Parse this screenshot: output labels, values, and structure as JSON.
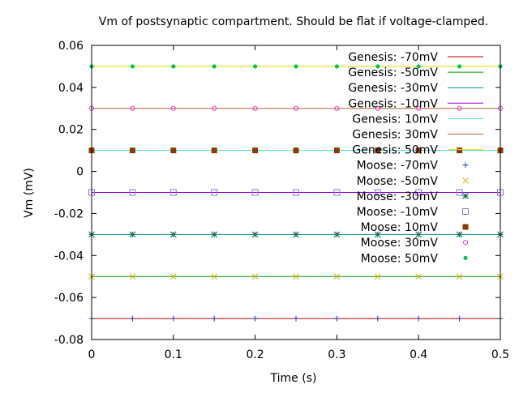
{
  "chart_data": {
    "type": "line",
    "title": "Vm of postsynaptic compartment. Should be flat if voltage-clamped.",
    "xlabel": "Time (s)",
    "ylabel": "Vm (mV)",
    "xlim": [
      0,
      0.5
    ],
    "ylim": [
      -0.08,
      0.06
    ],
    "xticks": [
      0,
      0.1,
      0.2,
      0.3,
      0.4,
      0.5
    ],
    "xtick_labels": [
      "0",
      "0.1",
      "0.2",
      "0.3",
      "0.4",
      "0.5"
    ],
    "yticks": [
      -0.08,
      -0.06,
      -0.04,
      -0.02,
      0,
      0.02,
      0.04,
      0.06
    ],
    "ytick_labels": [
      "-0.08",
      "-0.06",
      "-0.04",
      "-0.02",
      "0",
      "0.02",
      "0.04",
      "0.06"
    ],
    "grid": false,
    "legend_position": "top-right",
    "marker_x": [
      0,
      0.05,
      0.1,
      0.15,
      0.2,
      0.25,
      0.3,
      0.35,
      0.4,
      0.45,
      0.5
    ],
    "line_series": [
      {
        "name": "Genesis: -70mV",
        "x": [
          0,
          0.5
        ],
        "y": [
          -0.07,
          -0.07
        ],
        "color": "#c00000"
      },
      {
        "name": "Genesis: -50mV",
        "x": [
          0,
          0.5
        ],
        "y": [
          -0.05,
          -0.05
        ],
        "color": "#009e00"
      },
      {
        "name": "Genesis: -30mV",
        "x": [
          0,
          0.5
        ],
        "y": [
          -0.03,
          -0.03
        ],
        "color": "#008b8b"
      },
      {
        "name": "Genesis: -10mV",
        "x": [
          0,
          0.5
        ],
        "y": [
          -0.01,
          -0.01
        ],
        "color": "#9400d3"
      },
      {
        "name": "Genesis: 10mV",
        "x": [
          0,
          0.5
        ],
        "y": [
          0.01,
          0.01
        ],
        "color": "#40e0d0"
      },
      {
        "name": "Genesis: 30mV",
        "x": [
          0,
          0.5
        ],
        "y": [
          0.03,
          0.03
        ],
        "color": "#c0622d"
      },
      {
        "name": "Genesis: 50mV",
        "x": [
          0,
          0.5
        ],
        "y": [
          0.05,
          0.05
        ],
        "color": "#e8d800"
      }
    ],
    "point_series": [
      {
        "name": "Moose: -70mV",
        "marker": "plus",
        "y": -0.07,
        "color": "#2c3fae"
      },
      {
        "name": "Moose: -50mV",
        "marker": "cross",
        "y": -0.05,
        "color": "#e0b000"
      },
      {
        "name": "Moose: -30mV",
        "marker": "star",
        "y": -0.03,
        "color": "#006a4e"
      },
      {
        "name": "Moose: -10mV",
        "marker": "square-open",
        "y": -0.01,
        "color": "#9370db"
      },
      {
        "name": "Moose: 10mV",
        "marker": "square-filled",
        "y": 0.01,
        "color": "#8b3a00"
      },
      {
        "name": "Moose: 30mV",
        "marker": "circle-open",
        "y": 0.03,
        "color": "#e040e0"
      },
      {
        "name": "Moose: 50mV",
        "marker": "circle-filled",
        "y": 0.05,
        "color": "#00c060"
      }
    ]
  }
}
